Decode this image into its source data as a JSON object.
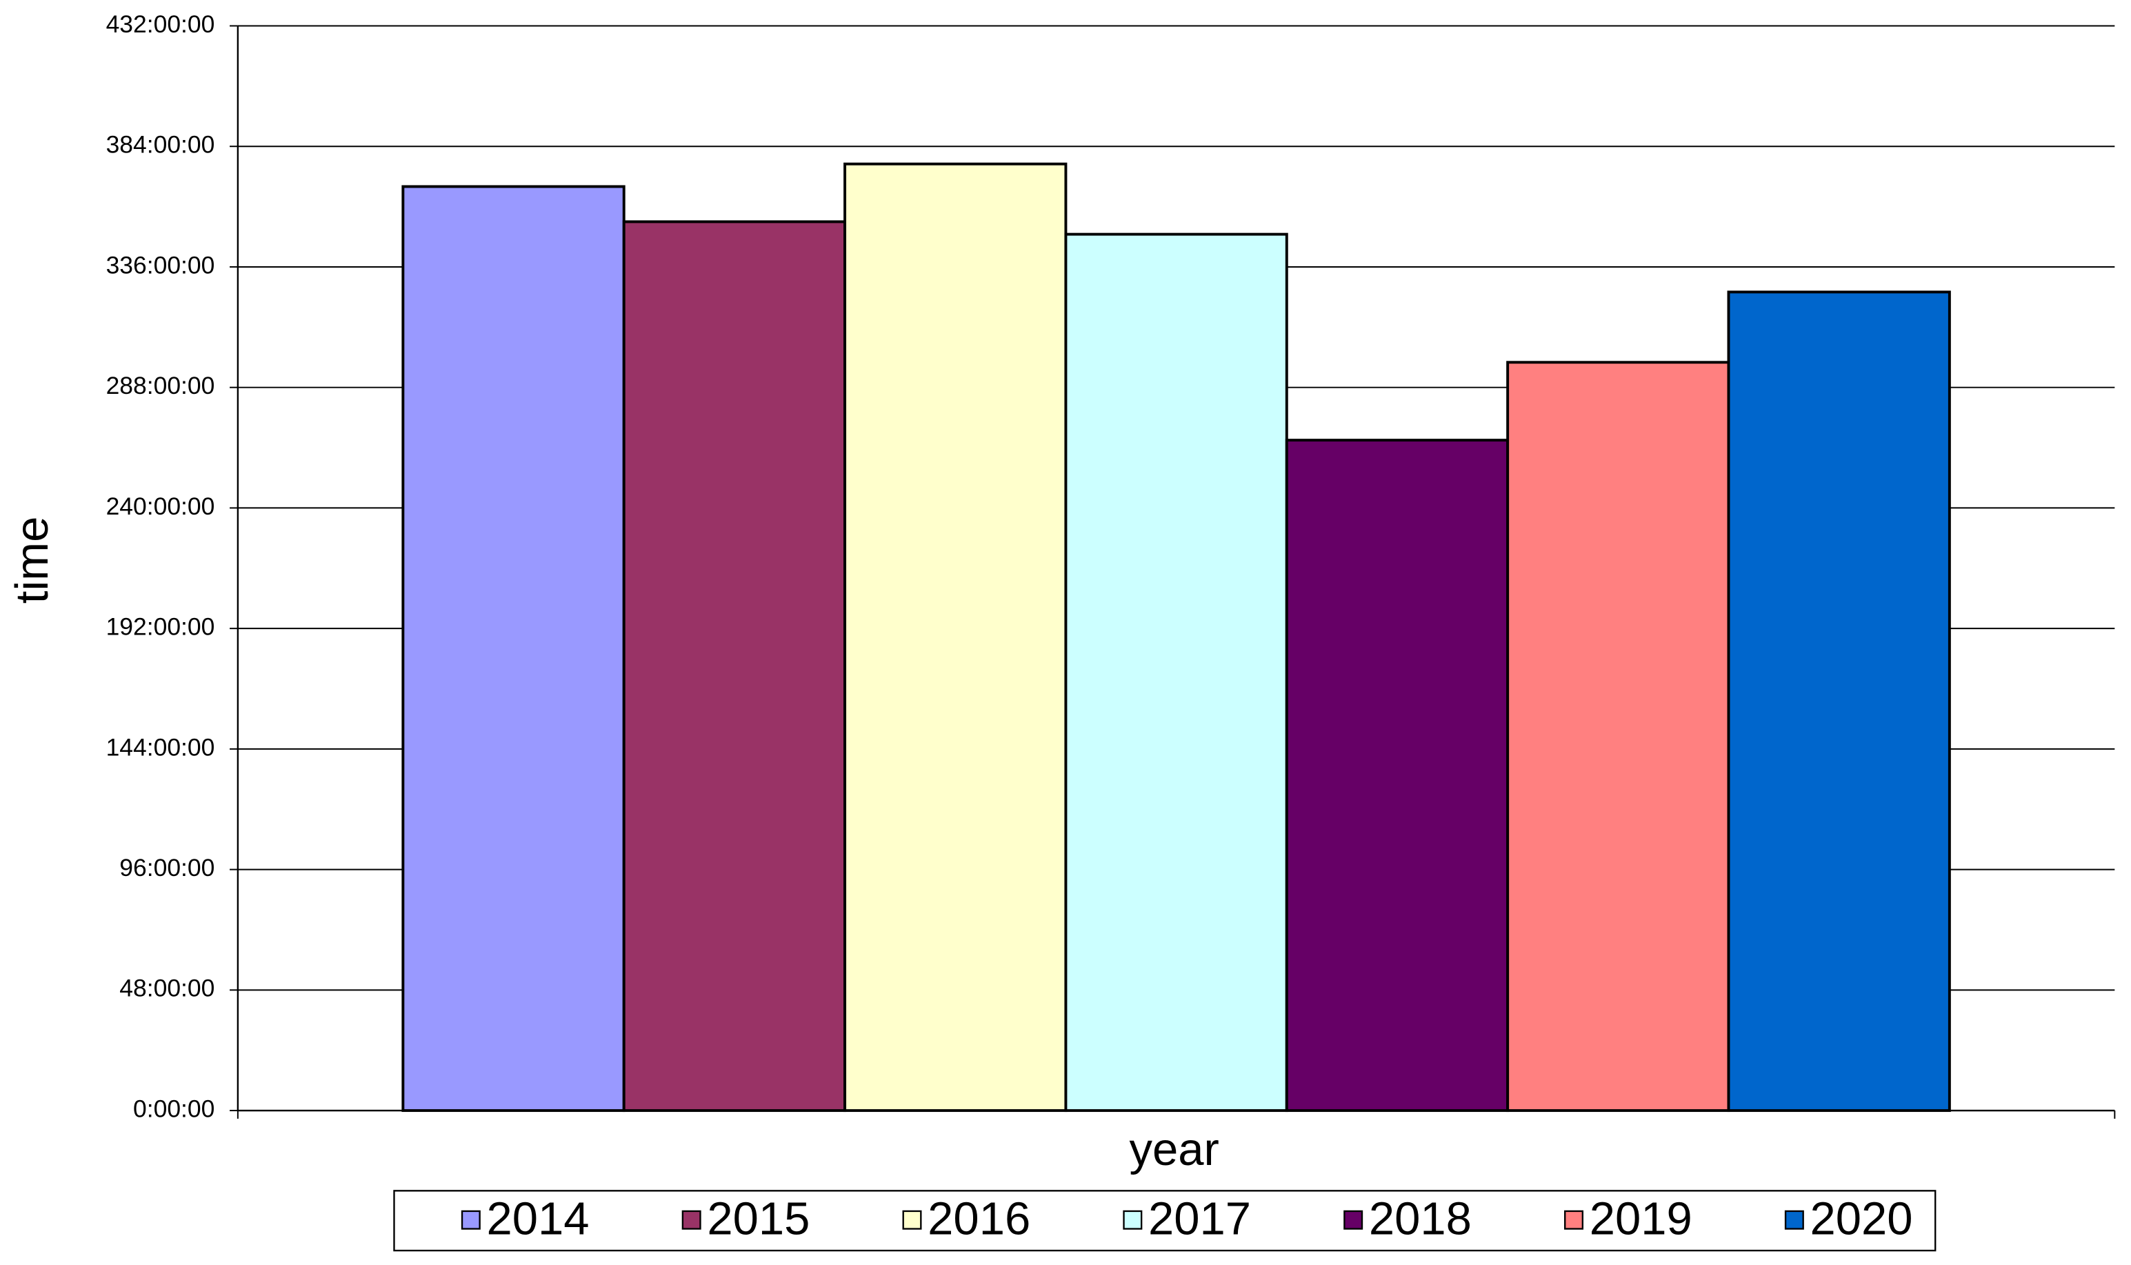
{
  "chart_data": {
    "type": "bar",
    "x_label": "year",
    "y_label": "time",
    "categories": [
      null
    ],
    "series": [
      {
        "name": "2014",
        "color": "#9999ff",
        "values": [
          368
        ]
      },
      {
        "name": "2015",
        "color": "#993366",
        "values": [
          354
        ]
      },
      {
        "name": "2016",
        "color": "#ffffcc",
        "values": [
          377
        ]
      },
      {
        "name": "2017",
        "color": "#ccffff",
        "values": [
          349
        ]
      },
      {
        "name": "2018",
        "color": "#660066",
        "values": [
          267
        ]
      },
      {
        "name": "2019",
        "color": "#ff8080",
        "values": [
          298
        ]
      },
      {
        "name": "2020",
        "color": "#0066cc",
        "values": [
          326
        ]
      }
    ],
    "ylim": [
      0,
      432
    ],
    "yticks": [
      {
        "value": 0,
        "label": "0:00:00"
      },
      {
        "value": 48,
        "label": "48:00:00"
      },
      {
        "value": 96,
        "label": "96:00:00"
      },
      {
        "value": 144,
        "label": "144:00:00"
      },
      {
        "value": 192,
        "label": "192:00:00"
      },
      {
        "value": 240,
        "label": "240:00:00"
      },
      {
        "value": 288,
        "label": "288:00:00"
      },
      {
        "value": 336,
        "label": "336:00:00"
      },
      {
        "value": 384,
        "label": "384:00:00"
      },
      {
        "value": 432,
        "label": "432:00:00"
      }
    ],
    "grid": true,
    "legend": "bottom"
  }
}
